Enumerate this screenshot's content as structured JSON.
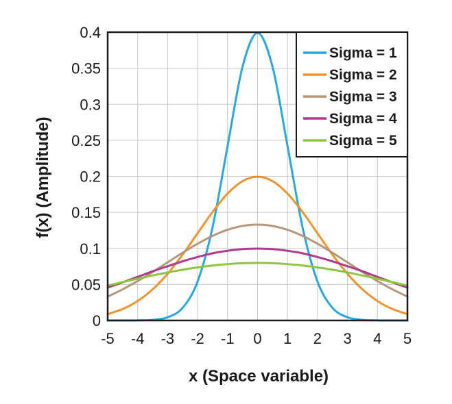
{
  "chart_data": {
    "type": "line",
    "title": "",
    "xlabel": "x (Space variable)",
    "ylabel": "f(x) (Amplitude)",
    "xlim": [
      -5,
      5
    ],
    "ylim": [
      0,
      0.4
    ],
    "x_ticks": [
      "-5",
      "-4",
      "-3",
      "-2",
      "-1",
      "0",
      "1",
      "2",
      "3",
      "4",
      "5"
    ],
    "y_ticks": [
      "0",
      "0.05",
      "0.1",
      "0.15",
      "0.2",
      "0.25",
      "0.3",
      "0.35",
      "0.4"
    ],
    "grid": true,
    "legend_position": "top-right",
    "x": [
      -5,
      -4.5,
      -4,
      -3.5,
      -3,
      -2.5,
      -2,
      -1.5,
      -1,
      -0.5,
      0,
      0.5,
      1,
      1.5,
      2,
      2.5,
      3,
      3.5,
      4,
      4.5,
      5
    ],
    "series": [
      {
        "name": "Sigma = 1",
        "color": "#29a8e0",
        "values": [
          1.5e-06,
          1.6e-05,
          0.000134,
          0.000873,
          0.00443,
          0.01753,
          0.05399,
          0.12952,
          0.24197,
          0.35207,
          0.39894,
          0.35207,
          0.24197,
          0.12952,
          0.05399,
          0.01753,
          0.00443,
          0.000873,
          0.000134,
          1.6e-05,
          1.5e-06
        ]
      },
      {
        "name": "Sigma = 2",
        "color": "#f0932b",
        "values": [
          0.00876,
          0.01587,
          0.027,
          0.04317,
          0.06476,
          0.09132,
          0.12099,
          0.15057,
          0.17603,
          0.19333,
          0.19947,
          0.19333,
          0.17603,
          0.15057,
          0.12099,
          0.09132,
          0.06476,
          0.04317,
          0.027,
          0.01587,
          0.00876
        ]
      },
      {
        "name": "Sigma = 3",
        "color": "#b8967a",
        "values": [
          0.03315,
          0.04318,
          0.05467,
          0.06728,
          0.08066,
          0.09397,
          0.10648,
          0.11735,
          0.12579,
          0.13115,
          0.13298,
          0.13115,
          0.12579,
          0.11735,
          0.10648,
          0.09397,
          0.08066,
          0.06728,
          0.05467,
          0.04318,
          0.03315
        ]
      },
      {
        "name": "Sigma = 4",
        "color": "#b03a8c",
        "values": [
          0.04566,
          0.0529,
          0.06049,
          0.06824,
          0.07528,
          0.08204,
          0.08802,
          0.09325,
          0.09668,
          0.09902,
          0.09974,
          0.09902,
          0.09668,
          0.09325,
          0.08802,
          0.08204,
          0.07528,
          0.06824,
          0.06049,
          0.0529,
          0.04566
        ]
      },
      {
        "name": "Sigma = 5",
        "color": "#8cc63f",
        "values": [
          0.04839,
          0.05323,
          0.05794,
          0.06241,
          0.06664,
          0.07041,
          0.07365,
          0.07626,
          0.07821,
          0.0794,
          0.07979,
          0.0794,
          0.07821,
          0.07626,
          0.07365,
          0.07041,
          0.06664,
          0.06241,
          0.05794,
          0.05323,
          0.04839
        ]
      }
    ]
  }
}
